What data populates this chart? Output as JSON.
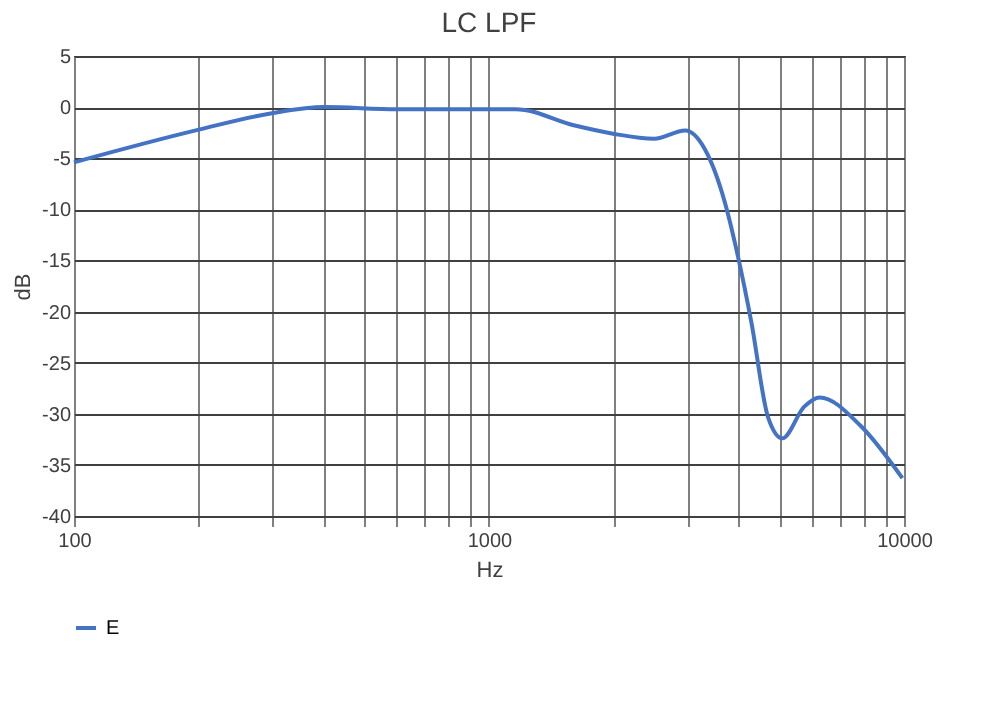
{
  "chart_data": {
    "type": "line",
    "title": "LC LPF",
    "xlabel": "Hz",
    "ylabel": "dB",
    "x": [
      100,
      200,
      300,
      400,
      600,
      773,
      1160,
      1610,
      1990,
      2500,
      2970,
      3310,
      3700,
      3980,
      4290,
      4700,
      5090,
      5750,
      6260,
      7870,
      9910
    ],
    "series": [
      {
        "name": "E",
        "color": "#4472c4",
        "values": [
          -5.4,
          -2.2,
          -0.6,
          0,
          -0.2,
          -0.2,
          -0.2,
          -1.8,
          -2.6,
          -3.1,
          -2.3,
          -4.1,
          -9.3,
          -14.6,
          -21.1,
          -30.3,
          -32.4,
          -29.3,
          -28.4,
          -31.2,
          -36.3
        ]
      }
    ],
    "log": "x",
    "xlim": [
      100,
      10000
    ],
    "xticks": [
      100,
      {
        "value": 200,
        "label": null
      },
      {
        "value": 300,
        "label": null
      },
      {
        "value": 400,
        "label": null
      },
      {
        "value": 500,
        "label": null
      },
      {
        "value": 600,
        "label": null
      },
      {
        "value": 700,
        "label": null
      },
      {
        "value": 800,
        "label": null
      },
      {
        "value": 900,
        "label": null
      },
      1000,
      {
        "value": 2000,
        "label": null
      },
      {
        "value": 3000,
        "label": null
      },
      {
        "value": 4000,
        "label": null
      },
      {
        "value": 5000,
        "label": null
      },
      {
        "value": 6000,
        "label": null
      },
      {
        "value": 7000,
        "label": null
      },
      {
        "value": 8000,
        "label": null
      },
      {
        "value": 9000,
        "label": null
      },
      10000
    ],
    "ylim": [
      -40,
      5
    ],
    "yticks": [
      -40,
      -35,
      -30,
      -25,
      -20,
      -15,
      -10,
      -5,
      0,
      5
    ],
    "grid": true,
    "legend": "bottom",
    "line_style": "solid",
    "marker": "none"
  }
}
